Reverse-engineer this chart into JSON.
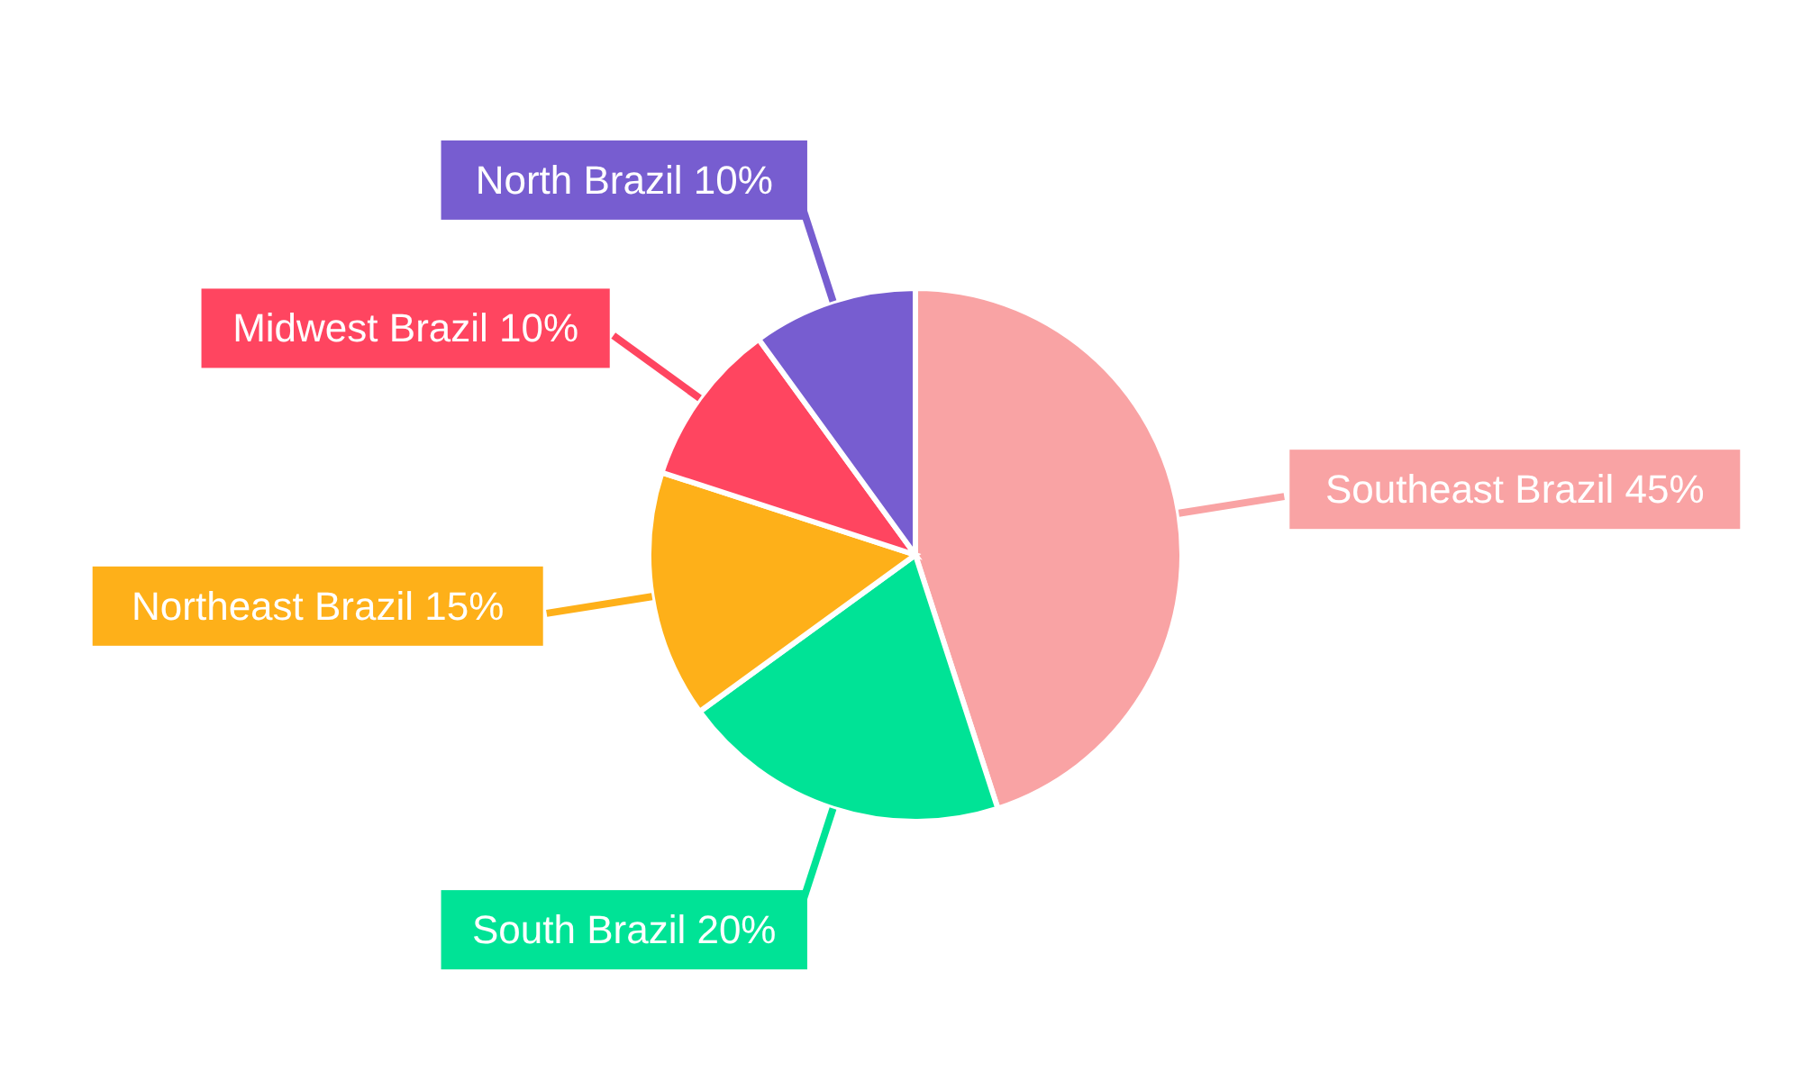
{
  "chart_data": {
    "type": "pie",
    "categories": [
      "Southeast Brazil",
      "South Brazil",
      "Northeast Brazil",
      "Midwest Brazil",
      "North Brazil"
    ],
    "values": [
      45,
      20,
      15,
      10,
      10
    ],
    "value_labels": [
      "45%",
      "20%",
      "15%",
      "10%",
      "10%"
    ],
    "colors": [
      "#f9a3a4",
      "#00e396",
      "#feb019",
      "#ff4560",
      "#775dd0"
    ]
  }
}
